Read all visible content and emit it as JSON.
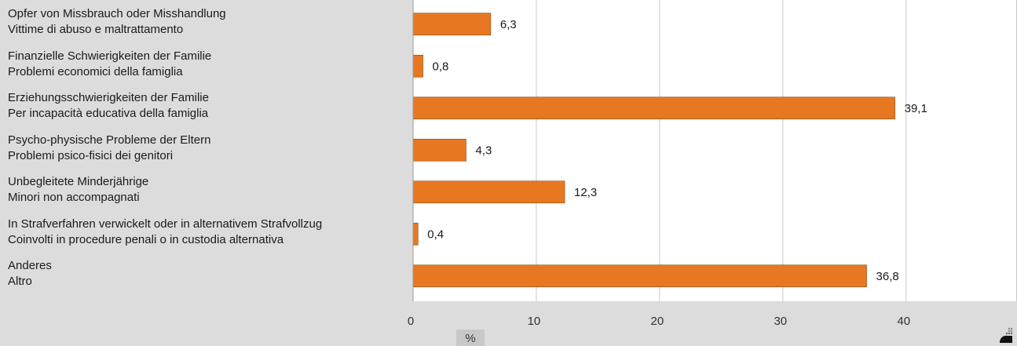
{
  "chart_data": {
    "type": "bar",
    "orientation": "horizontal",
    "categories": [
      [
        "Opfer von Missbrauch oder Misshandlung",
        "Vittime di abuso e maltrattamento"
      ],
      [
        "Finanzielle Schwierigkeiten der Familie",
        "Problemi economici della famiglia"
      ],
      [
        "Erziehungsschwierigkeiten der Familie",
        "Per incapacità educativa della famiglia"
      ],
      [
        "Psycho-physische Probleme der Eltern",
        "Problemi psico-fisici dei genitori"
      ],
      [
        "Unbegleitete Minderjährige",
        "Minori non accompagnati"
      ],
      [
        "In Strafverfahren verwickelt oder in alternativem Strafvollzug",
        "Coinvolti in procedure penali o in custodia alternativa"
      ],
      [
        "Anderes",
        "Altro"
      ]
    ],
    "values": [
      6.3,
      0.8,
      39.1,
      4.3,
      12.3,
      0.4,
      36.8
    ],
    "value_labels": [
      "6,3",
      "0,8",
      "39,1",
      "4,3",
      "12,3",
      "0,4",
      "36,8"
    ],
    "xlim": [
      0,
      49
    ],
    "xticks": [
      0,
      10,
      20,
      30,
      40
    ],
    "xtick_labels": [
      "0",
      "10",
      "20",
      "30",
      "40"
    ],
    "xlabel": "%",
    "grid": true,
    "bar_color": "#e87722",
    "bar_edge_color": "#8a4a10",
    "plot_background": "#ffffff",
    "page_background": "#dcdcdc",
    "grid_color": "#c8c8c8"
  }
}
